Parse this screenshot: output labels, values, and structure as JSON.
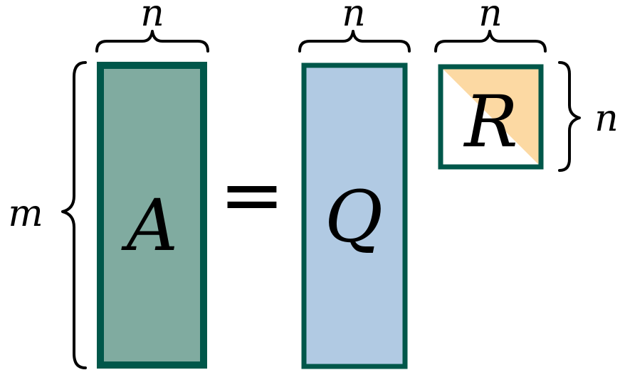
{
  "matrices": {
    "a": {
      "symbol": "A"
    },
    "q": {
      "symbol": "Q"
    },
    "r": {
      "symbol": "R"
    }
  },
  "operator": {
    "equals": "="
  },
  "dimensions": {
    "a_width": "n",
    "q_width": "n",
    "r_width": "n",
    "r_height": "n",
    "a_height": "m"
  },
  "colors": {
    "border": "#00574a",
    "matrix_a_fill": "#80aba0",
    "matrix_q_fill": "#b1cae3",
    "matrix_r_upper_fill": "#fcd9a3",
    "matrix_r_lower_fill": "#ffffff",
    "text": "#000000"
  }
}
